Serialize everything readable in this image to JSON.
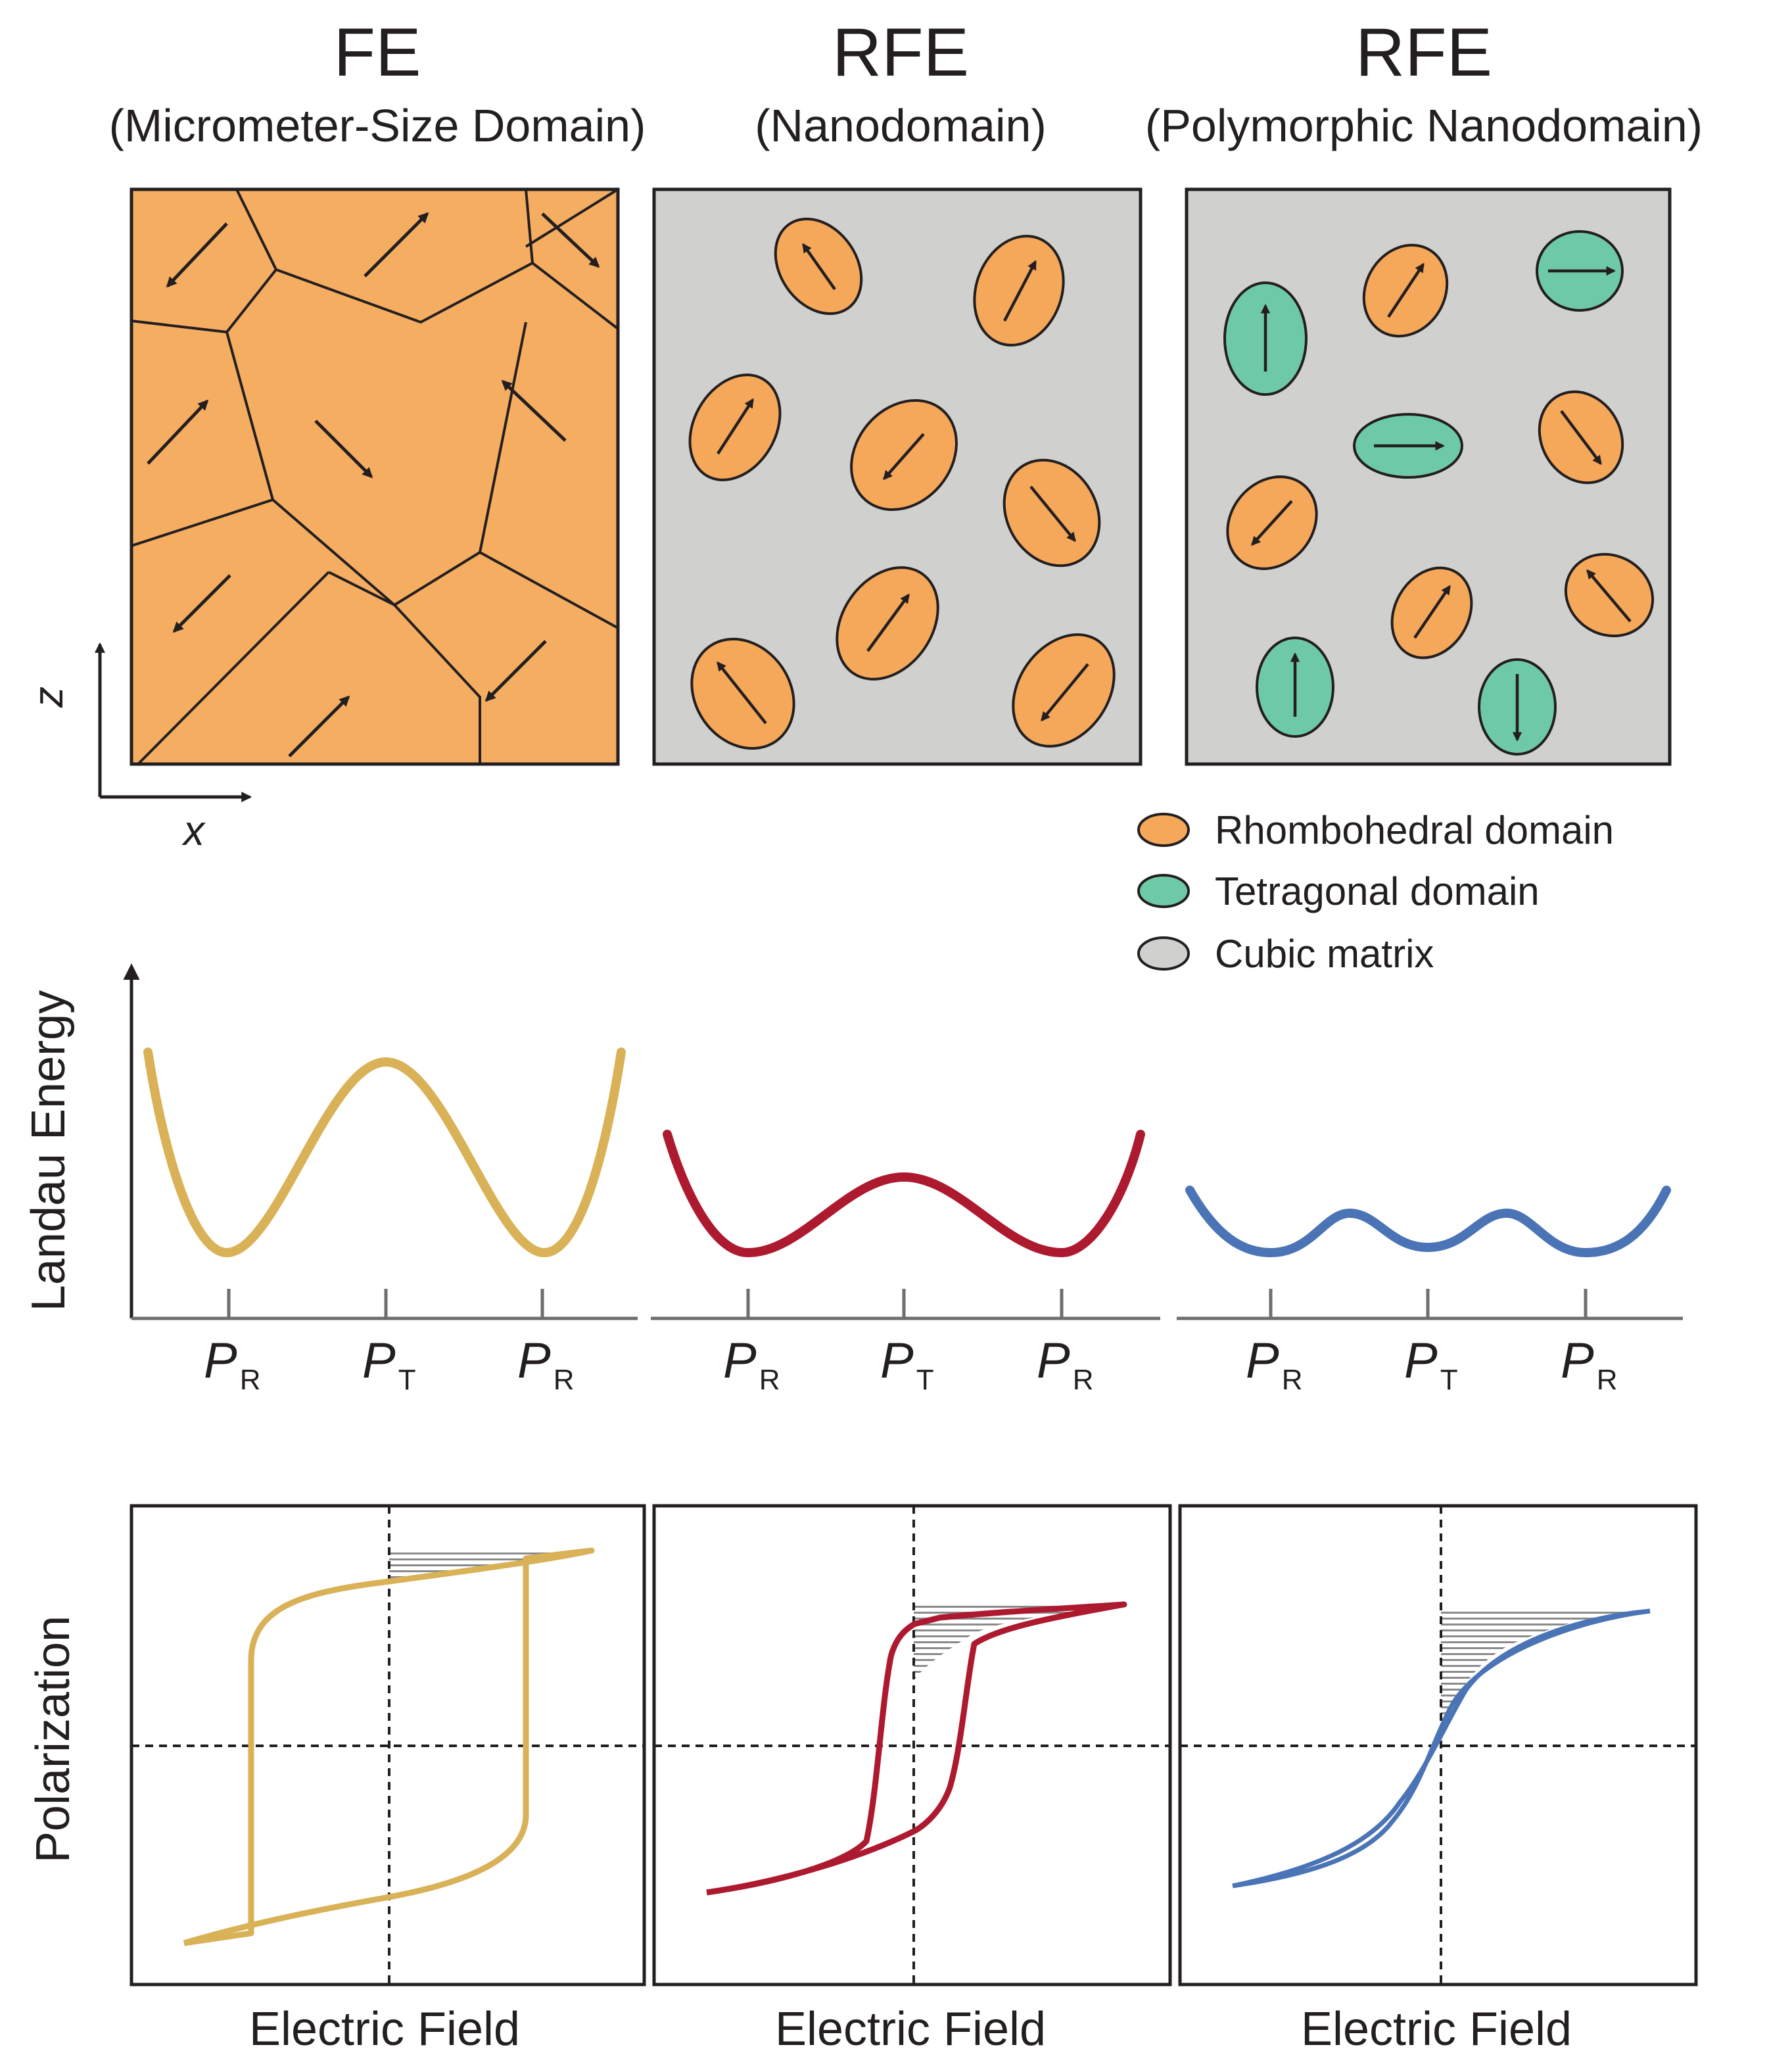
{
  "figure": {
    "columns": [
      {
        "title": "FE",
        "subtitle": "(Micrometer-Size Domain)"
      },
      {
        "title": "RFE",
        "subtitle": "(Nanodomain)"
      },
      {
        "title": "RFE",
        "subtitle": "(Polymorphic Nanodomain)"
      }
    ],
    "axes": {
      "z": "z",
      "x": "x"
    },
    "legend": [
      {
        "label": "Rhombohedral domain",
        "color": "#f5a85a"
      },
      {
        "label": "Tetragonal domain",
        "color": "#6ec9a7"
      },
      {
        "label": "Cubic matrix",
        "color": "#d0d1cf"
      }
    ],
    "energy": {
      "ylabel": "Landau Energy",
      "ticks": [
        {
          "main": "P",
          "sub": "R"
        },
        {
          "main": "P",
          "sub": "T"
        },
        {
          "main": "P",
          "sub": "R"
        }
      ],
      "curve_colors": [
        "#d9b157",
        "#ad1a2f",
        "#4a74b5"
      ]
    },
    "hysteresis": {
      "ylabel": "Polarization",
      "xlabels": [
        "Electric Field",
        "Electric Field",
        "Electric Field"
      ]
    },
    "colors": {
      "fe_fill": "#f5ad62",
      "matrix": "#d0d1cf",
      "rhombo": "#f5a85a",
      "tetra": "#6ec9a7",
      "ink": "#231f20"
    }
  }
}
